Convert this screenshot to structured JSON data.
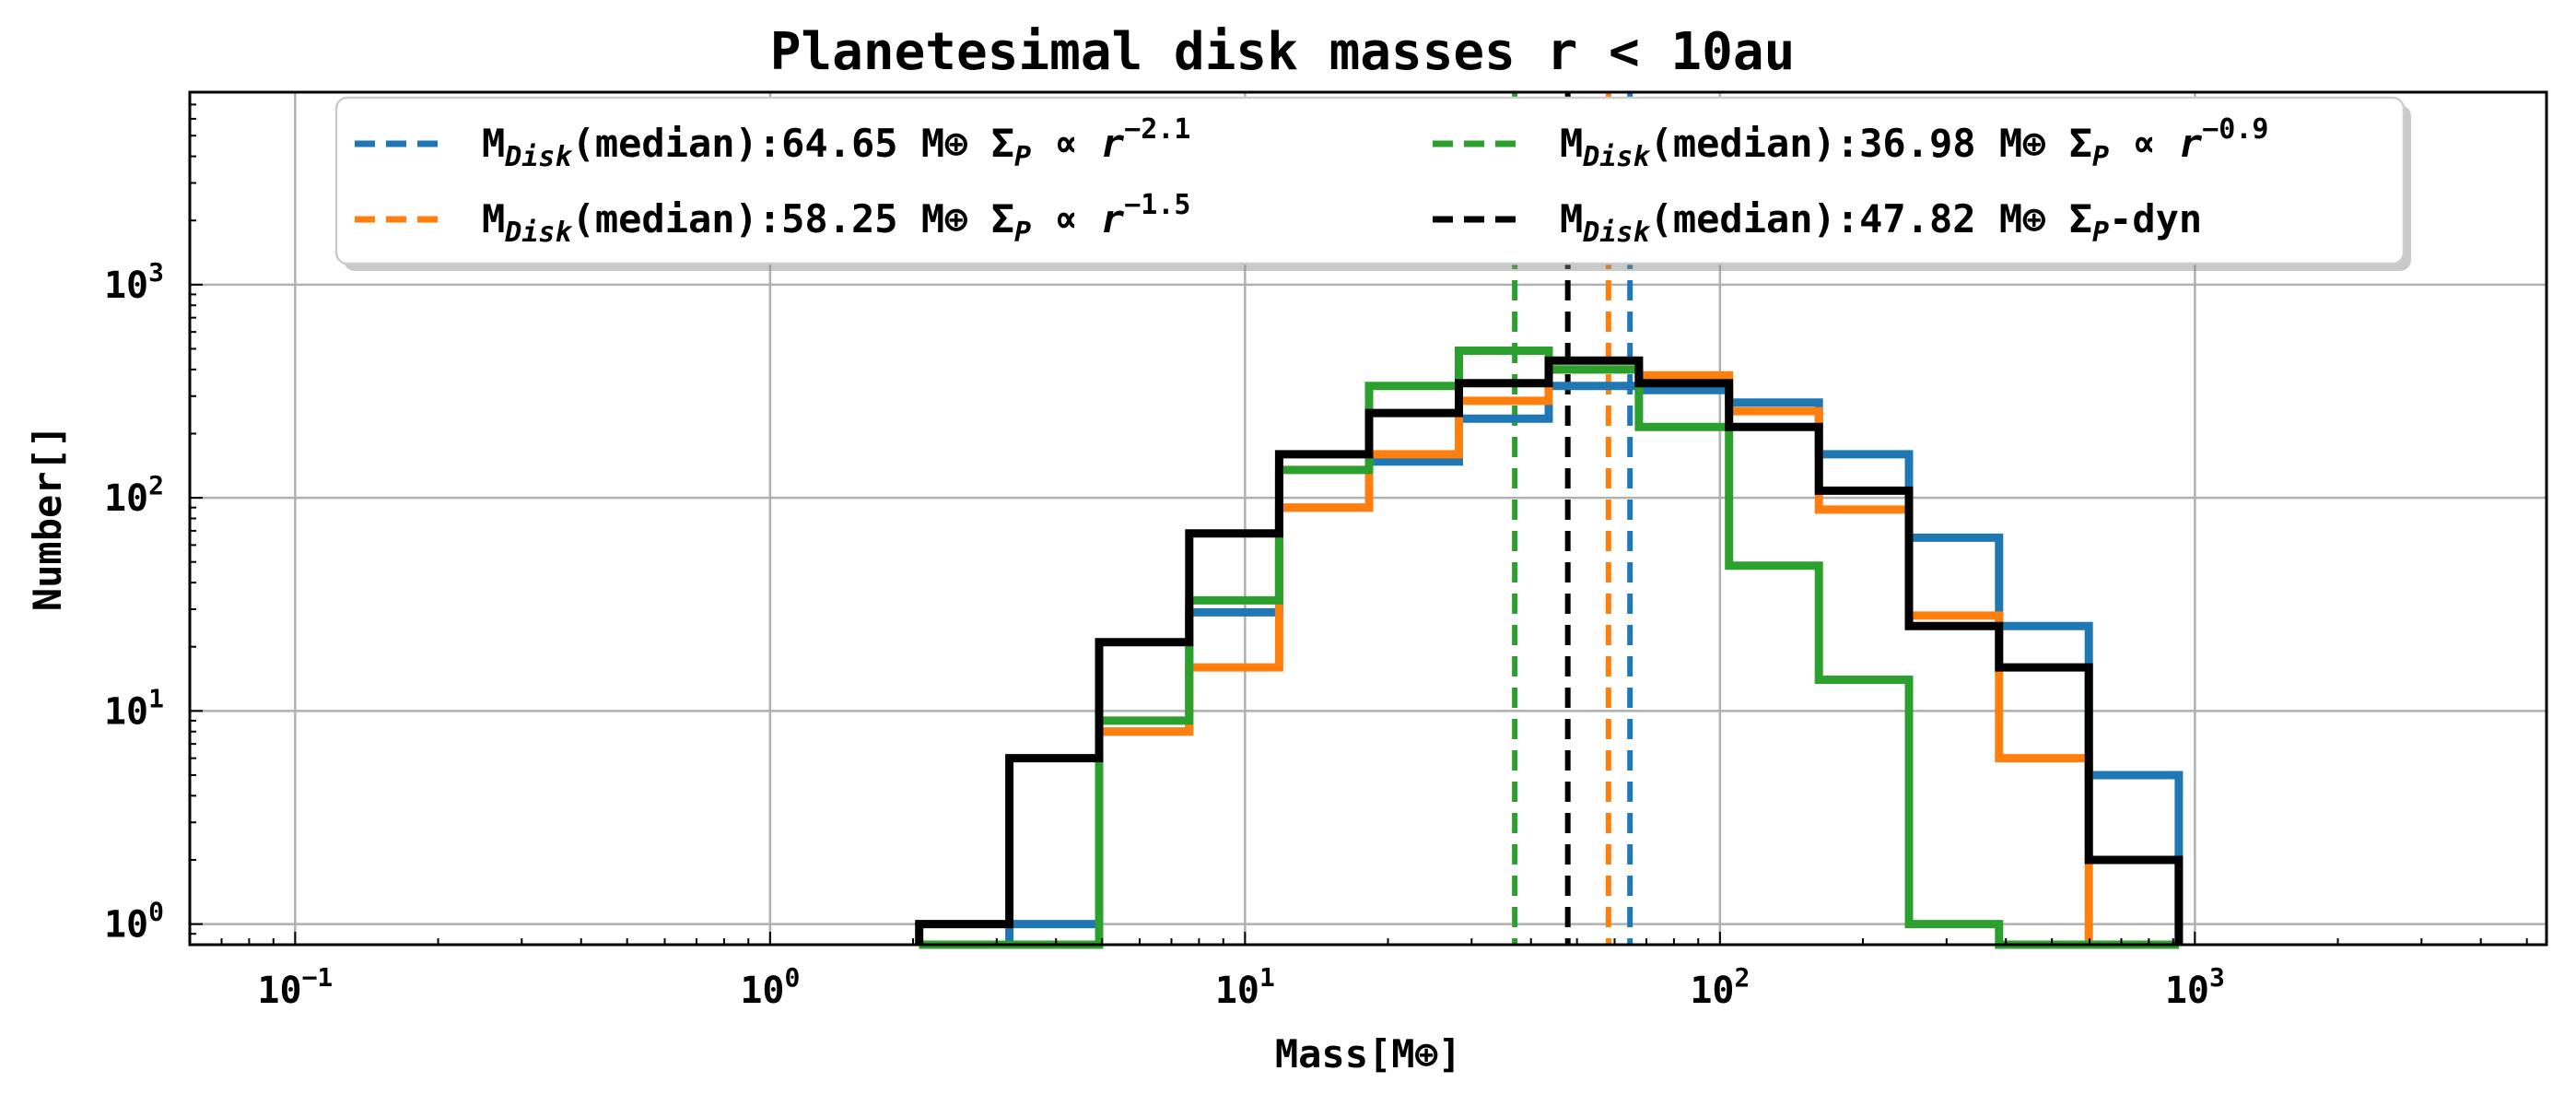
{
  "chart_data": {
    "type": "step-histogram",
    "title": "Planetesimal disk masses r < 10au",
    "xlabel": "Mass[M⊕]",
    "ylabel": "Number[]",
    "xscale": "log",
    "yscale": "log",
    "xlim": [
      0.06,
      5500
    ],
    "ylim": [
      0.8,
      8000
    ],
    "grid": true,
    "legend_position": "top-center",
    "x_ticks": [
      {
        "value": 0.1,
        "base": "10",
        "exp": "−1"
      },
      {
        "value": 1,
        "base": "10",
        "exp": "0"
      },
      {
        "value": 10,
        "base": "10",
        "exp": "1"
      },
      {
        "value": 100,
        "base": "10",
        "exp": "2"
      },
      {
        "value": 1000,
        "base": "10",
        "exp": "3"
      }
    ],
    "y_ticks": [
      {
        "value": 1,
        "base": "10",
        "exp": "0"
      },
      {
        "value": 10,
        "base": "10",
        "exp": "1"
      },
      {
        "value": 100,
        "base": "10",
        "exp": "2"
      },
      {
        "value": 1000,
        "base": "10",
        "exp": "3"
      }
    ],
    "bin_edges": [
      2.06,
      3.19,
      4.93,
      7.63,
      11.8,
      18.25,
      28.2,
      43.6,
      67.5,
      104.5,
      161.5,
      250,
      387,
      598,
      925
    ],
    "series": [
      {
        "label_main": "M",
        "label_sub": "Disk",
        "label_value": "(median):64.65  M⊕ ",
        "label_sigma": "Σ",
        "label_sigma_sub": "P",
        "label_prop": " ∝ r",
        "label_exp": "−2.1",
        "color": "#1f77b4",
        "median": 64.65,
        "counts": [
          0,
          1,
          8,
          29,
          90,
          148,
          235,
          335,
          320,
          280,
          160,
          65,
          25,
          5
        ]
      },
      {
        "label_main": "M",
        "label_sub": "Disk",
        "label_value": "(median):58.25 M⊕ ",
        "label_sigma": "Σ",
        "label_sigma_sub": "P",
        "label_prop": " ∝ r",
        "label_exp": "−1.5",
        "color": "#ff7f0e",
        "median": 58.25,
        "counts": [
          0,
          0,
          8,
          16,
          90,
          160,
          285,
          400,
          375,
          255,
          88,
          28,
          6,
          0
        ]
      },
      {
        "label_main": "M",
        "label_sub": "Disk",
        "label_value": "(median):36.98 M⊕ ",
        "label_sigma": "Σ",
        "label_sigma_sub": "P",
        "label_prop": " ∝ r",
        "label_exp": "−0.9",
        "color": "#2ca02c",
        "median": 36.98,
        "counts": [
          0,
          0,
          9,
          33,
          135,
          335,
          490,
          400,
          215,
          48,
          14,
          1,
          0,
          0
        ]
      },
      {
        "label_main": "M",
        "label_sub": "Disk",
        "label_value": "(median):47.82  M⊕ ",
        "label_sigma": "Σ",
        "label_sigma_sub": "P",
        "label_prop": "-dyn",
        "label_exp": "",
        "color": "#000000",
        "median": 47.82,
        "counts": [
          1,
          6,
          21,
          68,
          160,
          250,
          345,
          440,
          345,
          215,
          108,
          25,
          16,
          2
        ]
      }
    ]
  }
}
